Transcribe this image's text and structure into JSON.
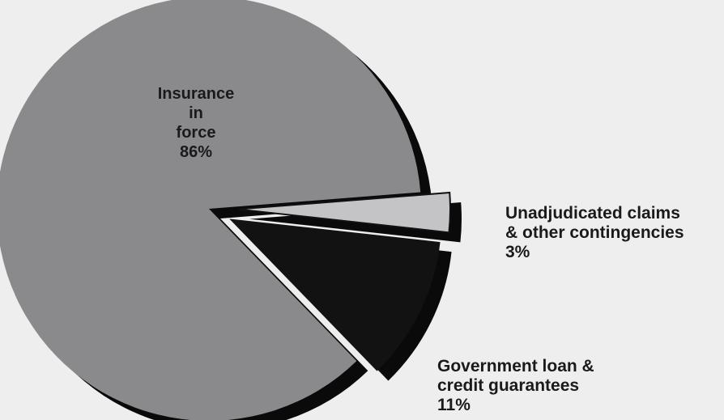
{
  "chart_data": {
    "type": "pie",
    "slices": [
      {
        "id": "insurance",
        "label_lines": [
          "Insurance",
          "in",
          "force"
        ],
        "pct_label": "86%",
        "value": 86,
        "color": "#8a8a8c",
        "exploded": false
      },
      {
        "id": "guarantees",
        "label_lines": [
          "Government loan &",
          "credit guarantees"
        ],
        "pct_label": "11%",
        "value": 11,
        "color": "#121212",
        "exploded": true
      },
      {
        "id": "claims",
        "label_lines": [
          "Unadjudicated claims",
          "& other contingencies"
        ],
        "pct_label": "3%",
        "value": 3,
        "color": "#c4c4c6",
        "exploded": true
      }
    ],
    "colors": {
      "background": "#eeeeef",
      "shadow": "#0a0a0a",
      "label_dark": "#1a1a1a"
    }
  }
}
